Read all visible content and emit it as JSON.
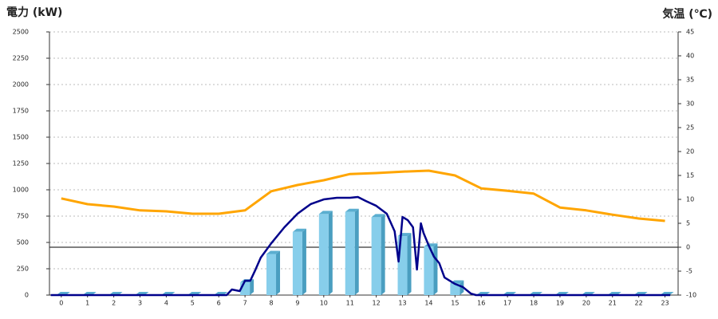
{
  "chart_data": {
    "type": "combo",
    "title": "電力 (kW)",
    "y2_title": "気温 (℃)",
    "title_color": "#1a6fc0",
    "y2_title_color": "#f08a1c",
    "xlim": [
      -0.45,
      23.5
    ],
    "xticks": [
      0,
      1,
      2,
      3,
      4,
      5,
      6,
      7,
      8,
      9,
      10,
      11,
      12,
      13,
      14,
      15,
      16,
      17,
      18,
      19,
      20,
      21,
      22,
      23
    ],
    "ylim": [
      0,
      2500
    ],
    "yticks": [
      0,
      250,
      500,
      750,
      1000,
      1250,
      1500,
      1750,
      2000,
      2250,
      2500
    ],
    "y2lim": [
      -10,
      45
    ],
    "y2ticks": [
      -10,
      -5,
      0,
      5,
      10,
      15,
      20,
      25,
      30,
      35,
      40,
      45
    ],
    "grid": true,
    "y2_zero_line": true,
    "series": [
      {
        "type": "bar",
        "color": "#87ceeb",
        "x": [
          0,
          1,
          2,
          3,
          4,
          5,
          6,
          7,
          8,
          9,
          10,
          11,
          12,
          13,
          14,
          15,
          16,
          17,
          18,
          19,
          20,
          21,
          22,
          23
        ],
        "values": [
          0,
          0,
          0,
          0,
          0,
          0,
          0,
          120,
          390,
          600,
          770,
          790,
          740,
          560,
          460,
          110,
          0,
          0,
          0,
          0,
          0,
          0,
          0,
          0
        ]
      },
      {
        "type": "line",
        "color": "#00008b",
        "x": [
          -0.4,
          6.3,
          6.5,
          6.8,
          7.0,
          7.2,
          7.4,
          7.6,
          8,
          8.5,
          9,
          9.5,
          10,
          10.5,
          11,
          11.3,
          11.6,
          12,
          12.4,
          12.7,
          12.85,
          13.0,
          13.2,
          13.4,
          13.55,
          13.7,
          13.8,
          14,
          14.2,
          14.4,
          14.6,
          15,
          15.3,
          15.6,
          15.8,
          23.2
        ],
        "values": [
          0,
          0,
          53,
          38,
          136,
          136,
          242,
          356,
          492,
          644,
          773,
          864,
          909,
          924,
          924,
          932,
          894,
          848,
          773,
          606,
          318,
          742,
          712,
          644,
          242,
          682,
          591,
          470,
          364,
          303,
          167,
          106,
          76,
          15,
          0,
          0
        ]
      },
      {
        "type": "line",
        "color": "#ffa500",
        "axis": "y2",
        "x": [
          0,
          1,
          2,
          3,
          4,
          5,
          6,
          7,
          8,
          9,
          10,
          11,
          12,
          13,
          14,
          15,
          16,
          17,
          18,
          19,
          20,
          21,
          22,
          23
        ],
        "values": [
          10.2,
          9,
          8.5,
          7.7,
          7.5,
          7,
          7,
          7.7,
          11.7,
          13,
          14,
          15.3,
          15.5,
          15.8,
          16,
          15,
          12.3,
          11.8,
          11.2,
          8.3,
          7.7,
          6.8,
          6,
          5.5
        ]
      }
    ]
  }
}
